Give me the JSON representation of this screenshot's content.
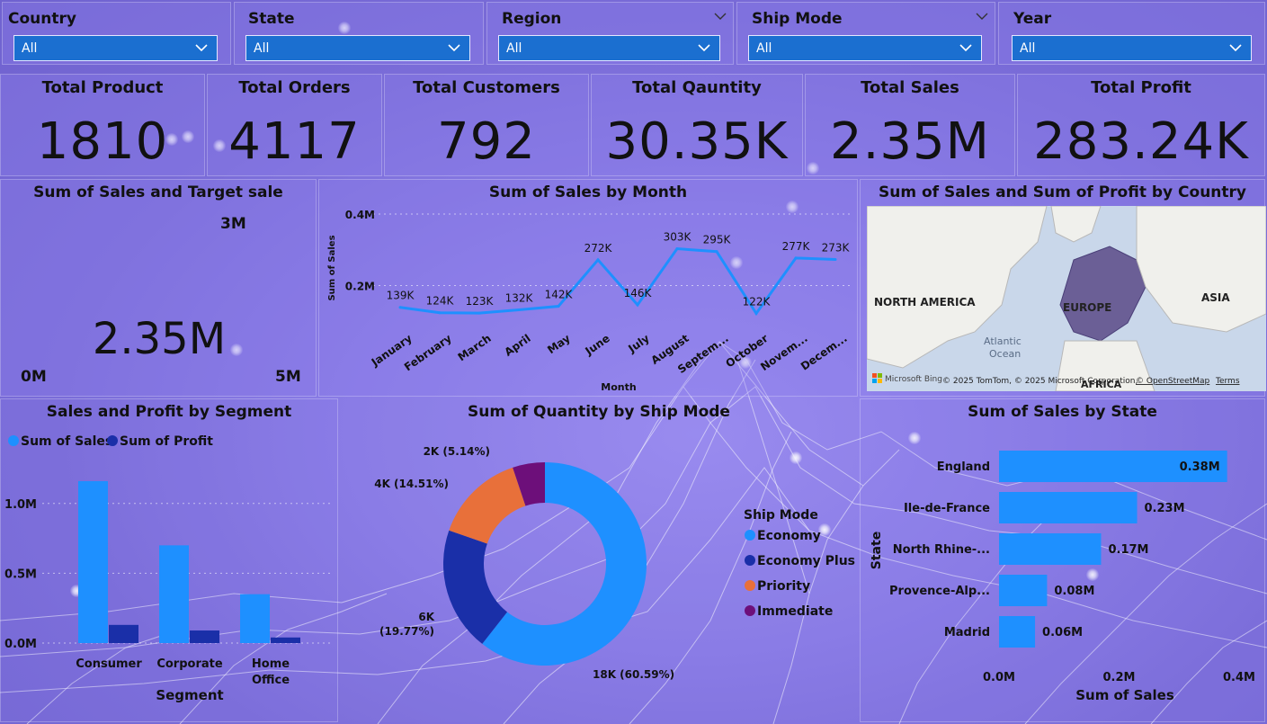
{
  "slicers": [
    {
      "label": "Country",
      "value": "All"
    },
    {
      "label": "State",
      "value": "All"
    },
    {
      "label": "Region",
      "value": "All"
    },
    {
      "label": "Ship Mode",
      "value": "All"
    },
    {
      "label": "Year",
      "value": "All"
    }
  ],
  "kpis": [
    {
      "label": "Total Product",
      "value": "1810"
    },
    {
      "label": "Total Orders",
      "value": "4117"
    },
    {
      "label": "Total Customers",
      "value": "792"
    },
    {
      "label": "Total Qauntity",
      "value": "30.35K"
    },
    {
      "label": "Total Sales",
      "value": "2.35M"
    },
    {
      "label": "Total Profit",
      "value": "283.24K"
    }
  ],
  "gauge": {
    "title": "Sum of Sales and Target sale",
    "value_label": "2.35M",
    "min_label": "0M",
    "max_label": "5M",
    "target_label": "3M",
    "value": 2.35,
    "min": 0,
    "max": 5,
    "target": 3,
    "color_fill": "#1873c9",
    "color_track": "#f2f2f2",
    "color_target": "#1a237e"
  },
  "map": {
    "title": "Sum of Sales and Sum of Profit by Country",
    "labels": {
      "north_america": "NORTH AMERICA",
      "europe": "EUROPE",
      "asia": "ASIA",
      "atlantic": "Atlantic",
      "ocean": "Ocean",
      "africa": "AFRICA"
    },
    "attribution": "© 2025 TomTom, © 2025 Microsoft Corporation,",
    "osm_link": "© OpenStreetMap",
    "terms": "Terms",
    "brand": "Microsoft Bing"
  },
  "charts": {
    "monthly": {
      "title": "Sum of Sales by Month",
      "xlabel": "Month",
      "ylabel": "Sum of Sales",
      "type": "line",
      "categories": [
        "January",
        "February",
        "March",
        "April",
        "May",
        "June",
        "July",
        "August",
        "Septem...",
        "October",
        "Novem...",
        "Decem..."
      ],
      "values": [
        139,
        124,
        123,
        132,
        142,
        272,
        146,
        303,
        295,
        122,
        277,
        273
      ],
      "data_labels": [
        "139K",
        "124K",
        "123K",
        "132K",
        "142K",
        "272K",
        "146K",
        "303K",
        "295K",
        "122K",
        "277K",
        "273K"
      ],
      "yticks": [
        "0.2M",
        "0.4M"
      ],
      "ylim": [
        0,
        0.4
      ],
      "color": "#1e90ff"
    },
    "segment": {
      "title": "Sales and Profit by Segment",
      "xlabel": "Segment",
      "type": "bar",
      "categories": [
        "Consumer",
        "Corporate",
        "Home Office"
      ],
      "series": [
        {
          "name": "Sum of Sales",
          "values": [
            1.16,
            0.7,
            0.35
          ],
          "color": "#1e90ff"
        },
        {
          "name": "Sum of Profit",
          "values": [
            0.13,
            0.09,
            0.04
          ],
          "color": "#1a2fa8"
        }
      ],
      "yticks": [
        "0.0M",
        "0.5M",
        "1.0M"
      ],
      "ylim": [
        0,
        1.3
      ]
    },
    "shipmode": {
      "title": "Sum of Quantity by Ship Mode",
      "legend_title": "Ship Mode",
      "type": "pie",
      "slices": [
        {
          "name": "Economy",
          "value": 18,
          "label": "18K (60.59%)",
          "color": "#1e90ff"
        },
        {
          "name": "Economy Plus",
          "value": 6,
          "label": "6K (19.77%)",
          "color": "#1a2fa8"
        },
        {
          "name": "Priority",
          "value": 4,
          "label": "4K (14.51%)",
          "color": "#e8703a"
        },
        {
          "name": "Immediate",
          "value": 2,
          "label": "2K (5.14%)",
          "color": "#6d0f7a"
        }
      ],
      "percents": [
        60.59,
        19.77,
        14.51,
        5.14
      ]
    },
    "state": {
      "title": "Sum of Sales by State",
      "xlabel": "Sum of Sales",
      "ylabel": "State",
      "type": "bar",
      "categories": [
        "England",
        "Ile-de-France",
        "North Rhine-...",
        "Provence-Alp...",
        "Madrid"
      ],
      "values": [
        0.38,
        0.23,
        0.17,
        0.08,
        0.06
      ],
      "data_labels": [
        "0.38M",
        "0.23M",
        "0.17M",
        "0.08M",
        "0.06M"
      ],
      "xticks": [
        "0.0M",
        "0.2M",
        "0.4M"
      ],
      "xlim": [
        0,
        0.4
      ],
      "color": "#1e90ff"
    }
  }
}
